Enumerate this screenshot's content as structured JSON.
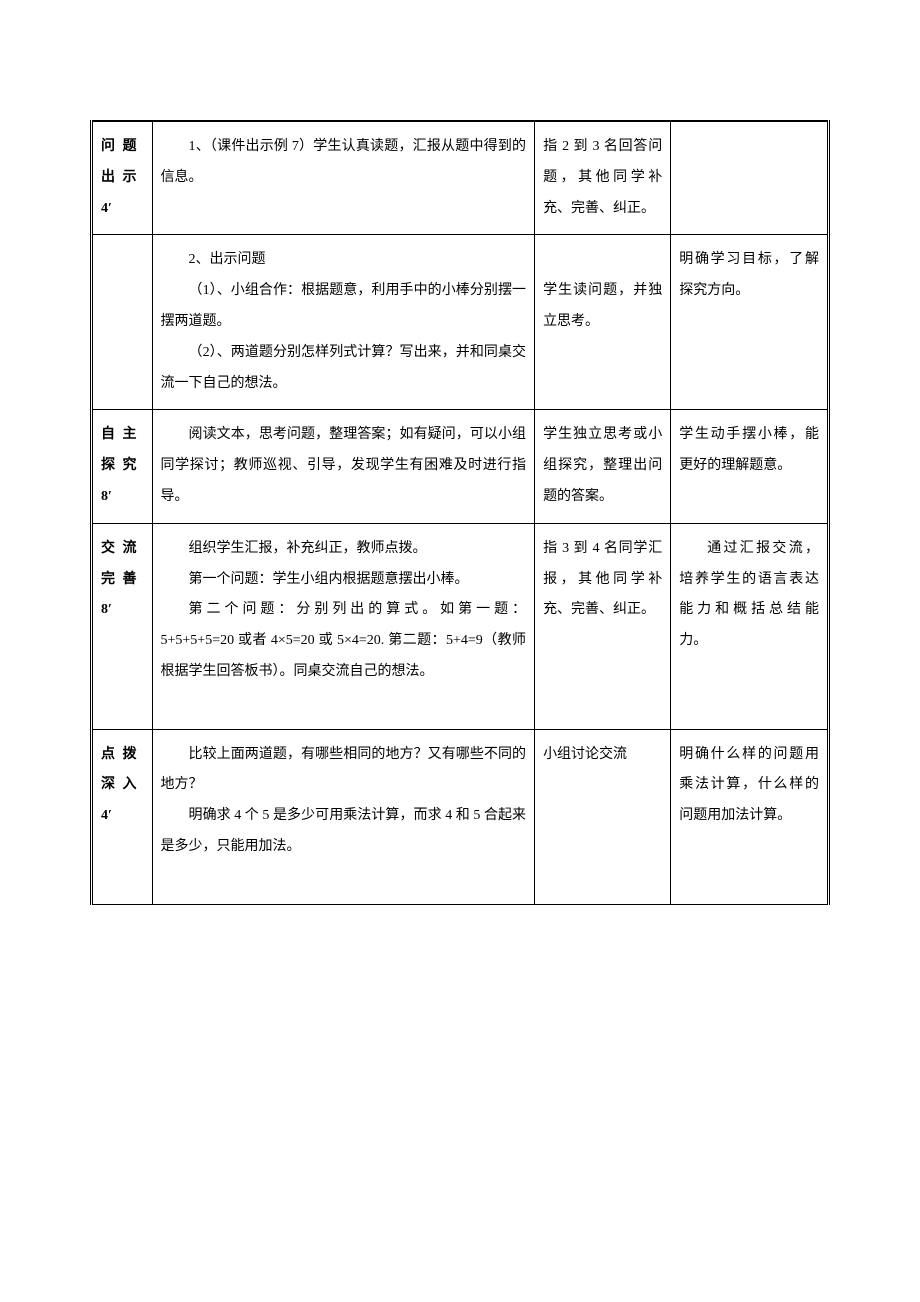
{
  "table": {
    "col_widths": [
      "56px",
      "354px",
      "126px",
      "146px"
    ],
    "font_size": 14,
    "line_height": 2.2,
    "border_color": "#000000",
    "text_color": "#000000",
    "background_color": "#ffffff"
  },
  "rows": [
    {
      "label_line1": "问 题",
      "label_line2": "出 示",
      "time": "4′",
      "content": "1、（课件出示例 7）学生认真读题，汇报从题中得到的信息。",
      "col3": "指 2 到 3 名回答问题，其他同学补充、完善、纠正。",
      "col4": ""
    },
    {
      "label_line1": "",
      "time": "",
      "content_lines": [
        "2、出示问题",
        "（1）、小组合作：根据题意，利用手中的小棒分别摆一摆两道题。",
        "（2）、两道题分别怎样列式计算？写出来，并和同桌交流一下自己的想法。"
      ],
      "col3": "学生读问题，并独立思考。",
      "col4": "明确学习目标，了解探究方向。"
    },
    {
      "label_line1": "自 主",
      "label_line2": "探 究",
      "time": "8′",
      "content": "阅读文本，思考问题，整理答案；如有疑问，可以小组同学探讨；教师巡视、引导，发现学生有困难及时进行指导。",
      "col3": "学生独立思考或小组探究，整理出问题的答案。",
      "col4": "学生动手摆小棒，能更好的理解题意。"
    },
    {
      "label_line1": "交 流",
      "label_line2": "完 善",
      "time": "8′",
      "content_lines": [
        "组织学生汇报，补充纠正，教师点拨。",
        "第一个问题：学生小组内根据题意摆出小棒。",
        "第二个问题：分别列出的算式。如第一题：5+5+5+5=20 或者 4×5=20 或 5×4=20. 第二题：5+4=9（教师根据学生回答板书）。同桌交流自己的想法。"
      ],
      "col3": "指 3 到 4 名同学汇报，其他同学补充、完善、纠正。",
      "col4": "通过汇报交流，培养学生的语言表达能力和概括总结能力。"
    },
    {
      "label_line1": "点 拨",
      "label_line2": "深 入",
      "time": "4′",
      "content_lines": [
        "比较上面两道题，有哪些相同的地方？又有哪些不同的地方？",
        "明确求 4 个 5 是多少可用乘法计算，而求 4 和 5 合起来是多少，只能用加法。"
      ],
      "col3": "小组讨论交流",
      "col4": "明确什么样的问题用乘法计算，什么样的问题用加法计算。"
    }
  ]
}
